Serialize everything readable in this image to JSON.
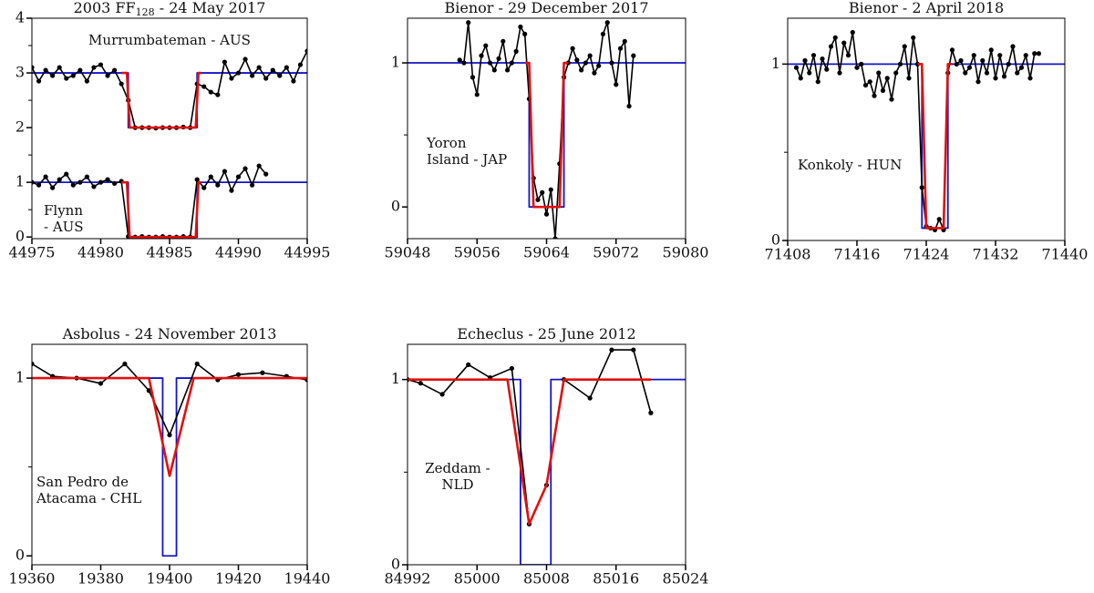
{
  "chart_data": [
    {
      "type": "line",
      "title": "2003 FF",
      "title_sub": "128",
      "title_tail": " - 24 May 2017",
      "annotations": [
        [
          "Murrumbateman - AUS"
        ],
        [
          "Flynn",
          "- AUS"
        ]
      ],
      "xlim": [
        44975,
        44995
      ],
      "xticks": [
        44975,
        44980,
        44985,
        44990,
        44995
      ],
      "ylim": [
        -0.03,
        4
      ],
      "yticks": [
        0,
        1,
        2,
        3,
        4
      ],
      "minor_yticks": [
        0.5,
        1.5,
        2.5,
        3.5
      ],
      "series": [
        {
          "color": "#1414c8",
          "x": [
            44975,
            44982,
            44982,
            44987,
            44987,
            44995
          ],
          "values": [
            3,
            3,
            2,
            2,
            3,
            3
          ]
        },
        {
          "color": "#1414c8",
          "x": [
            44975,
            44982,
            44982,
            44987,
            44987,
            44995
          ],
          "values": [
            1,
            1,
            0,
            0,
            1,
            1
          ]
        },
        {
          "color": "#000000",
          "markers": true,
          "x": [
            44975,
            44975.5,
            44976,
            44976.5,
            44977,
            44977.5,
            44978,
            44978.5,
            44979,
            44979.5,
            44980,
            44980.5,
            44981,
            44981.5,
            44982,
            44982.5,
            44983,
            44983.5,
            44984,
            44984.5,
            44985,
            44985.5,
            44986,
            44986.5,
            44987,
            44987.5,
            44988,
            44988.5,
            44989,
            44989.5,
            44990,
            44990.5,
            44991,
            44991.5,
            44992,
            44992.5,
            44993,
            44993.5,
            44994,
            44994.5,
            44995
          ],
          "values": [
            3.1,
            2.85,
            3.05,
            2.95,
            3.1,
            2.9,
            2.95,
            3.05,
            2.85,
            3.1,
            3.15,
            2.95,
            3.05,
            2.8,
            2.5,
            2.0,
            2.0,
            2.0,
            1.99,
            2.0,
            2.0,
            2.0,
            2.01,
            2.0,
            2.8,
            2.75,
            2.65,
            2.6,
            3.2,
            2.9,
            3.0,
            3.25,
            2.95,
            3.1,
            2.9,
            3.05,
            2.95,
            3.1,
            2.85,
            3.15,
            3.4
          ]
        },
        {
          "color": "#000000",
          "markers": true,
          "x": [
            44975,
            44975.5,
            44976,
            44976.5,
            44977,
            44977.5,
            44978,
            44978.5,
            44979,
            44979.5,
            44980,
            44980.5,
            44981,
            44981.5,
            44982,
            44982.5,
            44983,
            44983.5,
            44984,
            44984.5,
            44985,
            44985.5,
            44986,
            44986.5,
            44987,
            44987.5,
            44988,
            44988.5,
            44989,
            44989.5,
            44990,
            44990.5,
            44991,
            44991.5,
            44992
          ],
          "values": [
            1.0,
            0.95,
            1.1,
            0.9,
            1.05,
            1.15,
            0.95,
            1.0,
            1.1,
            0.92,
            1.0,
            1.05,
            0.98,
            1.02,
            0.01,
            0,
            0.01,
            0,
            0,
            0.01,
            0,
            0,
            0.01,
            0,
            1.05,
            0.9,
            1.1,
            0.95,
            1.2,
            0.85,
            1.1,
            1.25,
            0.95,
            1.3,
            1.15
          ]
        },
        {
          "color": "#e01010",
          "x": [
            44981.5,
            44981.9,
            44982.1,
            44986.9,
            44987.1,
            44987.3
          ],
          "values": [
            3,
            3,
            2,
            2,
            3,
            3
          ]
        },
        {
          "color": "#e01010",
          "x": [
            44981.5,
            44981.9,
            44982.1,
            44986.9,
            44987.1,
            44987.3
          ],
          "values": [
            1,
            1,
            0,
            0,
            1,
            1
          ]
        }
      ]
    },
    {
      "type": "line",
      "title": "Bienor - 29 December 2017",
      "annotations": [
        [
          "Yoron",
          "Island - JAP"
        ]
      ],
      "xlim": [
        59048,
        59080
      ],
      "xticks": [
        59048,
        59056,
        59064,
        59072,
        59080
      ],
      "ylim": [
        -0.22,
        1.31
      ],
      "yticks": [
        0,
        1
      ],
      "minor_yticks": [
        0.5
      ],
      "series": [
        {
          "color": "#1414c8",
          "x": [
            59048,
            59062,
            59062,
            59066,
            59066,
            59080
          ],
          "values": [
            1,
            1,
            0,
            0,
            1,
            1
          ]
        },
        {
          "color": "#000000",
          "markers": true,
          "x": [
            59054,
            59054.5,
            59055,
            59055.5,
            59056,
            59056.5,
            59057,
            59057.5,
            59058,
            59058.5,
            59059,
            59059.5,
            59060,
            59060.5,
            59061,
            59061.5,
            59062,
            59062.5,
            59063,
            59063.5,
            59064,
            59064.5,
            59065,
            59065.5,
            59066,
            59066.5,
            59067,
            59067.5,
            59068,
            59068.5,
            59069,
            59069.5,
            59070,
            59070.5,
            59071,
            59071.5,
            59072,
            59072.5,
            59073,
            59073.5,
            59074
          ],
          "values": [
            1.02,
            1.0,
            1.28,
            0.9,
            0.78,
            1.05,
            1.12,
            1.0,
            0.95,
            1.03,
            1.15,
            0.95,
            1.0,
            1.08,
            1.25,
            1.2,
            0.75,
            0.2,
            0.05,
            0.1,
            -0.05,
            0.12,
            -0.22,
            0.3,
            0.9,
            1.0,
            1.1,
            1.02,
            0.95,
            1.0,
            1.05,
            0.93,
            0.98,
            1.2,
            1.28,
            1.0,
            0.85,
            1.1,
            1.15,
            0.7,
            1.05
          ]
        },
        {
          "color": "#e01010",
          "x": [
            59061.5,
            59062,
            59062.5,
            59065.5,
            59066,
            59066.5
          ],
          "values": [
            1,
            1,
            0,
            0,
            1,
            1
          ]
        }
      ]
    },
    {
      "type": "line",
      "title": "Bienor - 2 April 2018",
      "annotations": [
        [
          "Konkoly - HUN"
        ]
      ],
      "xlim": [
        71408,
        71440
      ],
      "xticks": [
        71408,
        71416,
        71424,
        71432,
        71440
      ],
      "ylim": [
        0,
        1.26
      ],
      "yticks": [
        0,
        1
      ],
      "minor_yticks": [
        0.5
      ],
      "series": [
        {
          "color": "#1414c8",
          "x": [
            71408,
            71423.5,
            71423.5,
            71426.5,
            71426.5,
            71440
          ],
          "values": [
            1,
            1,
            0.07,
            0.07,
            1,
            1
          ]
        },
        {
          "color": "#000000",
          "markers": true,
          "x": [
            71409,
            71409.5,
            71410,
            71410.5,
            71411,
            71411.5,
            71412,
            71412.5,
            71413,
            71413.5,
            71414,
            71414.5,
            71415,
            71415.5,
            71416,
            71416.5,
            71417,
            71417.5,
            71418,
            71418.5,
            71419,
            71419.5,
            71420,
            71420.5,
            71421,
            71421.5,
            71422,
            71422.5,
            71423,
            71423.5,
            71424,
            71424.5,
            71425,
            71425.5,
            71426,
            71426.5,
            71427,
            71427.5,
            71428,
            71428.5,
            71429,
            71429.5,
            71430,
            71430.5,
            71431,
            71431.5,
            71432,
            71432.5,
            71433,
            71433.5,
            71434,
            71434.5,
            71435,
            71435.5,
            71436,
            71436.5,
            71437
          ],
          "values": [
            0.98,
            0.92,
            1.02,
            0.95,
            1.05,
            0.9,
            1.03,
            0.97,
            1.1,
            1.15,
            0.95,
            1.12,
            1.05,
            1.18,
            0.98,
            1.0,
            0.88,
            0.9,
            0.82,
            0.95,
            0.85,
            0.92,
            0.8,
            0.95,
            1.0,
            1.1,
            0.92,
            1.15,
            1.0,
            0.3,
            0.08,
            0.07,
            0.06,
            0.12,
            0.06,
            0.95,
            1.08,
            1.0,
            1.02,
            0.95,
            0.98,
            1.05,
            0.9,
            1.02,
            0.95,
            1.08,
            0.92,
            1.05,
            0.93,
            1.0,
            1.1,
            0.95,
            0.98,
            1.05,
            0.92,
            1.06,
            1.06
          ]
        },
        {
          "color": "#e01010",
          "x": [
            71423,
            71423.5,
            71424,
            71426,
            71426.5,
            71427
          ],
          "values": [
            1,
            1,
            0.07,
            0.07,
            1,
            1
          ]
        }
      ]
    },
    {
      "type": "line",
      "title": "Asbolus - 24 November 2013",
      "annotations": [
        [
          "San Pedro de",
          "Atacama - CHL"
        ]
      ],
      "xlim": [
        19360,
        19440
      ],
      "xticks": [
        19360,
        19380,
        19400,
        19420,
        19440
      ],
      "ylim": [
        -0.05,
        1.19
      ],
      "yticks": [
        0,
        1
      ],
      "minor_yticks": [
        0.5
      ],
      "series": [
        {
          "color": "#1414c8",
          "x": [
            19360,
            19398,
            19398,
            19402,
            19402,
            19440
          ],
          "values": [
            1,
            1,
            0,
            0,
            1,
            1
          ]
        },
        {
          "color": "#000000",
          "markers": true,
          "x": [
            19360,
            19366,
            19373,
            19380,
            19387,
            19394,
            19400,
            19408,
            19414,
            19420,
            19427,
            19434,
            19440
          ],
          "values": [
            1.08,
            1.01,
            1.0,
            0.97,
            1.08,
            0.93,
            0.68,
            1.08,
            0.99,
            1.02,
            1.03,
            1.01,
            0.99
          ]
        },
        {
          "color": "#e01010",
          "x": [
            19360,
            19394,
            19400,
            19407,
            19440
          ],
          "values": [
            1,
            1,
            0.45,
            1,
            1
          ]
        }
      ]
    },
    {
      "type": "line",
      "title": "Echeclus - 25 June 2012",
      "annotations": [
        [
          "Zeddam -",
          "NLD"
        ]
      ],
      "xlim": [
        84992,
        85024
      ],
      "xticks": [
        84992,
        85000,
        85008,
        85016,
        85024
      ],
      "ylim": [
        0,
        1.19
      ],
      "yticks": [
        0,
        1
      ],
      "minor_yticks": [
        0.5
      ],
      "series": [
        {
          "color": "#1414c8",
          "x": [
            84992,
            85005,
            85005,
            85008.5,
            85008.5,
            85024
          ],
          "values": [
            1,
            1,
            0,
            0,
            1,
            1
          ]
        },
        {
          "color": "#000000",
          "markers": true,
          "x": [
            84992,
            84993.5,
            84996,
            84999,
            85001.5,
            85004,
            85006,
            85008,
            85010,
            85013,
            85015.5,
            85018,
            85020
          ],
          "values": [
            1.0,
            0.98,
            0.92,
            1.08,
            1.01,
            1.06,
            0.22,
            0.43,
            1.0,
            0.9,
            1.16,
            1.16,
            0.82
          ]
        },
        {
          "color": "#e01010",
          "x": [
            84992,
            85003.5,
            85006,
            85008,
            85010,
            85020
          ],
          "values": [
            1,
            1,
            0.22,
            0.43,
            1,
            1
          ]
        }
      ]
    }
  ]
}
